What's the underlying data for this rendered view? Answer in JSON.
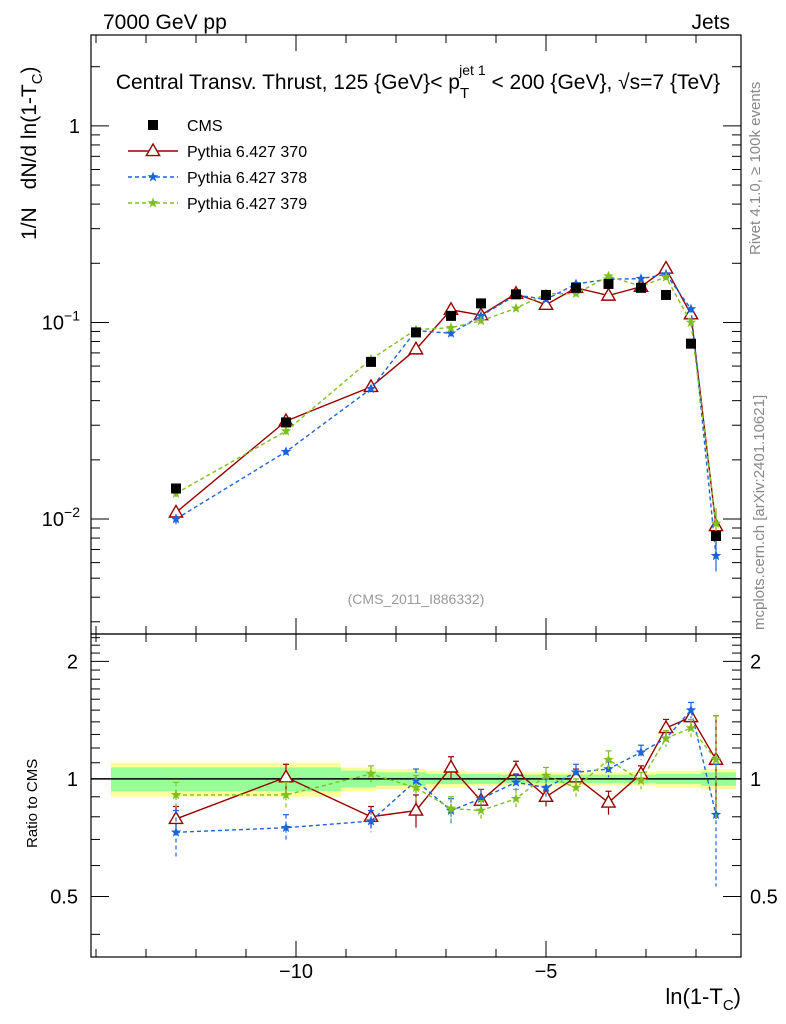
{
  "header": {
    "left": "7000 GeV pp",
    "right": "Jets"
  },
  "side_labels": {
    "rivet": "Rivet 4.1.0, ≥ 100k events",
    "mcplots": "mcplots.cern.ch [arXiv:2401.10621]"
  },
  "chart_data": {
    "type": "line",
    "title": {
      "main": "Central Transv. Thrust, 125 {GeV}< p",
      "sup": "jet 1",
      "sub": "T",
      "tail": " < 200 {GeV}, √s=7 {TeV}"
    },
    "watermark": "(CMS_2011_I886332)",
    "xlabel": {
      "main": "ln(1-T",
      "sub": "C",
      "close": ")"
    },
    "ylabel": {
      "prefix": "1/N",
      "main": "dN/d ln(1-T",
      "sub": "C",
      "close": ")"
    },
    "ratio_ylabel": "Ratio to CMS",
    "xlim": [
      -14.1,
      -1.1
    ],
    "ylim_log": [
      0.0026,
      2.9
    ],
    "ratio_ylim": [
      0.35,
      2.35
    ],
    "x_ticks": [
      {
        "value": -10,
        "label": "−10"
      },
      {
        "value": -5,
        "label": "−5"
      }
    ],
    "y_ticks": [
      {
        "value": 1,
        "mant": "1",
        "exp": ""
      },
      {
        "value": 0.1,
        "mant": "10",
        "exp": "−1"
      },
      {
        "value": 0.01,
        "mant": "10",
        "exp": "−2"
      }
    ],
    "ratio_ticks": [
      {
        "value": 2,
        "label": "2"
      },
      {
        "value": 1,
        "label": "1"
      },
      {
        "value": 0.5,
        "label": "0.5"
      }
    ],
    "x": [
      -12.4,
      -10.2,
      -8.5,
      -7.6,
      -6.9,
      -6.3,
      -5.6,
      -5.0,
      -4.4,
      -3.75,
      -3.1,
      -2.6,
      -2.1,
      -1.6
    ],
    "cms": {
      "name": "CMS",
      "values": [
        0.0143,
        0.031,
        0.063,
        0.089,
        0.108,
        0.125,
        0.139,
        0.138,
        0.15,
        0.157,
        0.15,
        0.138,
        0.078,
        0.0082
      ],
      "band_x": [
        -13.7,
        -9.1,
        -8.4,
        -7.4,
        -6.6,
        -5.9,
        -2.8,
        -2.5,
        -1.9,
        -1.2
      ],
      "band_yellow": [
        0.1,
        0.07,
        0.06,
        0.05,
        0.04,
        0.04,
        0.05,
        0.05,
        0.06
      ],
      "band_green": [
        0.07,
        0.05,
        0.04,
        0.03,
        0.03,
        0.025,
        0.03,
        0.03,
        0.04
      ]
    },
    "series": [
      {
        "name": "Pythia 6.427 370",
        "color": "#990000",
        "dash": "",
        "marker": "triangle",
        "values": [
          0.0108,
          0.0315,
          0.047,
          0.073,
          0.116,
          0.109,
          0.14,
          0.123,
          0.15,
          0.137,
          0.152,
          0.188,
          0.11,
          0.0092
        ],
        "ratio": [
          0.79,
          1.01,
          0.8,
          0.83,
          1.07,
          0.88,
          1.05,
          0.9,
          1.01,
          0.87,
          1.03,
          1.35,
          1.44,
          1.12
        ],
        "ratio_err": [
          0.06,
          0.08,
          0.05,
          0.08,
          0.07,
          0.06,
          0.06,
          0.05,
          0.05,
          0.06,
          0.05,
          0.07,
          0.07,
          0.33
        ]
      },
      {
        "name": "Pythia 6.427 378",
        "color": "#1a66d9",
        "dash": "4,3",
        "marker": "star",
        "values": [
          0.01,
          0.022,
          0.046,
          0.091,
          0.088,
          0.108,
          0.138,
          0.131,
          0.157,
          0.166,
          0.167,
          0.176,
          0.117,
          0.0065
        ],
        "ratio": [
          0.73,
          0.75,
          0.78,
          0.99,
          0.83,
          0.89,
          0.98,
          0.95,
          1.04,
          1.06,
          1.17,
          1.27,
          1.5,
          0.81
        ],
        "ratio_err": [
          0.1,
          0.06,
          0.05,
          0.07,
          0.06,
          0.05,
          0.05,
          0.05,
          0.05,
          0.05,
          0.05,
          0.06,
          0.07,
          0.28
        ]
      },
      {
        "name": "Pythia 6.427 379",
        "color": "#7fbf1f",
        "dash": "4,3",
        "marker": "star",
        "values": [
          0.0135,
          0.028,
          0.065,
          0.092,
          0.094,
          0.102,
          0.118,
          0.14,
          0.14,
          0.172,
          0.153,
          0.17,
          0.1,
          0.0095
        ],
        "ratio": [
          0.91,
          0.91,
          1.03,
          0.95,
          0.84,
          0.83,
          0.89,
          1.02,
          0.95,
          1.12,
          0.99,
          1.27,
          1.35,
          1.12
        ],
        "ratio_err": [
          0.07,
          0.07,
          0.05,
          0.07,
          0.06,
          0.05,
          0.05,
          0.05,
          0.05,
          0.06,
          0.05,
          0.06,
          0.07,
          0.33
        ]
      }
    ]
  }
}
